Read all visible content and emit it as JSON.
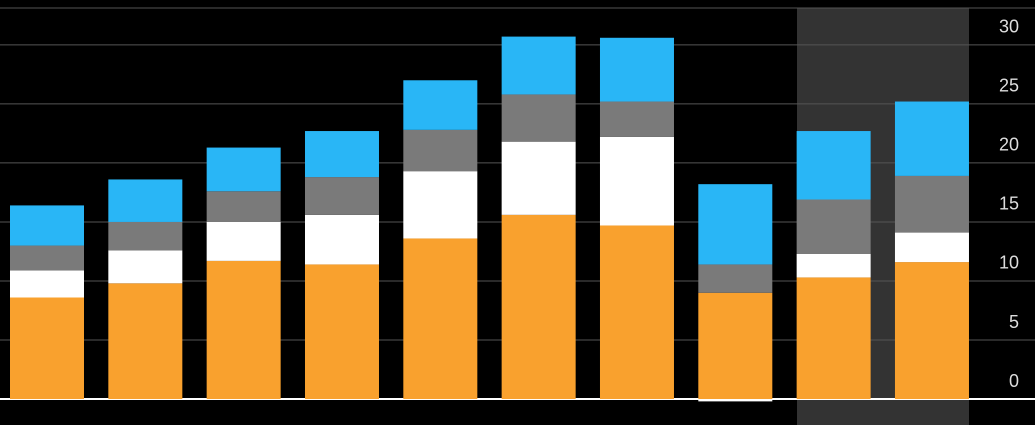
{
  "chart_data": {
    "type": "stacked_bar",
    "categories": [
      null,
      null,
      null,
      null,
      null,
      null,
      null,
      null,
      null,
      null
    ],
    "series": [
      {
        "color": "#f9a12e",
        "values": [
          8.6,
          9.8,
          11.7,
          11.4,
          13.6,
          15.6,
          14.7,
          9.0,
          10.3,
          11.6
        ]
      },
      {
        "color": "#ffffff",
        "values": [
          2.3,
          2.8,
          3.3,
          4.2,
          5.7,
          6.2,
          7.5,
          -0.2,
          2.0,
          2.5
        ]
      },
      {
        "color": "#7a7a7a",
        "values": [
          2.1,
          2.4,
          2.6,
          3.2,
          3.5,
          4.0,
          3.0,
          2.4,
          4.6,
          4.8
        ]
      },
      {
        "color": "#29b6f6",
        "values": [
          3.4,
          3.6,
          3.7,
          3.9,
          4.2,
          4.9,
          5.4,
          6.8,
          5.8,
          6.3
        ]
      }
    ],
    "ylim": [
      -2.2,
      33.8
    ],
    "yticks": [
      0,
      5,
      10,
      15,
      20,
      25,
      30
    ],
    "grid": true
  }
}
